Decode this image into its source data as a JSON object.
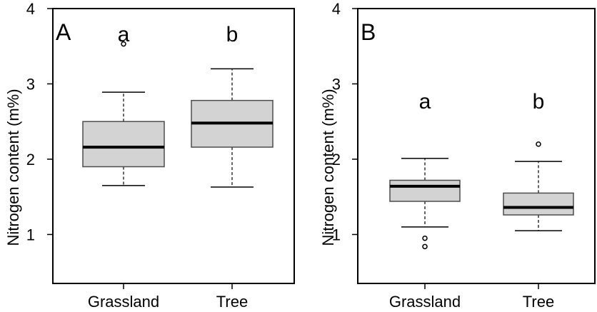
{
  "chart_data": [
    {
      "type": "box",
      "panel_label": "A",
      "ylabel": "Nitrogen content (m%)",
      "ylim": [
        0.35,
        4.0
      ],
      "yticks": [
        1,
        2,
        3,
        4
      ],
      "categories": [
        "Grassland",
        "Tree"
      ],
      "boxes": [
        {
          "category": "Grassland",
          "whisker_low": 1.65,
          "q1": 1.9,
          "median": 2.16,
          "q3": 2.5,
          "whisker_high": 2.89,
          "outliers": [
            3.53
          ],
          "letter": "a"
        },
        {
          "category": "Tree",
          "whisker_low": 1.63,
          "q1": 2.16,
          "median": 2.48,
          "q3": 2.78,
          "whisker_high": 3.2,
          "outliers": [],
          "letter": "b"
        }
      ]
    },
    {
      "type": "box",
      "panel_label": "B",
      "ylabel": "Nitrogen content (m%)",
      "ylim": [
        0.35,
        4.0
      ],
      "yticks": [
        1,
        2,
        3,
        4
      ],
      "categories": [
        "Grassland",
        "Tree"
      ],
      "boxes": [
        {
          "category": "Grassland",
          "whisker_low": 1.1,
          "q1": 1.44,
          "median": 1.64,
          "q3": 1.72,
          "whisker_high": 2.01,
          "outliers": [
            0.95,
            0.84
          ],
          "letter": "a"
        },
        {
          "category": "Tree",
          "whisker_low": 1.05,
          "q1": 1.26,
          "median": 1.36,
          "q3": 1.55,
          "whisker_high": 1.97,
          "outliers": [
            2.2
          ],
          "letter": "b"
        }
      ]
    }
  ]
}
